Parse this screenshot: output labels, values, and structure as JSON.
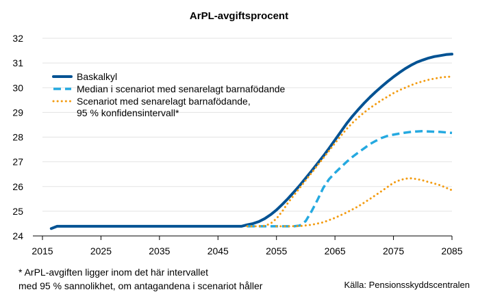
{
  "chart_data": {
    "type": "line",
    "title": "ArPL-avgiftsprocent",
    "xlabel": "",
    "ylabel": "",
    "xlim": [
      2015,
      2085
    ],
    "ylim": [
      24,
      32
    ],
    "x_ticks": [
      "2015",
      "2025",
      "2035",
      "2045",
      "2055",
      "2065",
      "2075",
      "2085"
    ],
    "y_ticks": [
      "24",
      "25",
      "26",
      "27",
      "28",
      "29",
      "30",
      "31",
      "32"
    ],
    "grid": "horizontal",
    "legend_position": "top-left",
    "series": [
      {
        "name": "Baskalkyl",
        "style": "solid",
        "color": "#005293",
        "points": [
          [
            2016.5,
            24.3
          ],
          [
            2017.5,
            24.39
          ],
          [
            2020,
            24.39
          ],
          [
            2030,
            24.39
          ],
          [
            2040,
            24.39
          ],
          [
            2045,
            24.39
          ],
          [
            2049,
            24.39
          ],
          [
            2050,
            24.45
          ],
          [
            2051,
            24.5
          ],
          [
            2052,
            24.58
          ],
          [
            2053,
            24.7
          ],
          [
            2054,
            24.86
          ],
          [
            2055,
            25.05
          ],
          [
            2056,
            25.28
          ],
          [
            2057,
            25.52
          ],
          [
            2058,
            25.78
          ],
          [
            2059,
            26.05
          ],
          [
            2060,
            26.34
          ],
          [
            2061,
            26.63
          ],
          [
            2062,
            26.93
          ],
          [
            2063,
            27.23
          ],
          [
            2064,
            27.55
          ],
          [
            2065,
            27.88
          ],
          [
            2066,
            28.22
          ],
          [
            2067,
            28.55
          ],
          [
            2068,
            28.85
          ],
          [
            2069,
            29.12
          ],
          [
            2070,
            29.38
          ],
          [
            2071,
            29.62
          ],
          [
            2072,
            29.84
          ],
          [
            2073,
            30.05
          ],
          [
            2074,
            30.25
          ],
          [
            2075,
            30.44
          ],
          [
            2076,
            30.61
          ],
          [
            2077,
            30.77
          ],
          [
            2078,
            30.91
          ],
          [
            2079,
            31.03
          ],
          [
            2080,
            31.12
          ],
          [
            2081,
            31.2
          ],
          [
            2082,
            31.26
          ],
          [
            2083,
            31.3
          ],
          [
            2084,
            31.34
          ],
          [
            2085,
            31.36
          ]
        ]
      },
      {
        "name": "Median i scenariot med senarelagt barnafödande",
        "style": "dashed",
        "color": "#25a9e0",
        "points": [
          [
            2050,
            24.39
          ],
          [
            2052,
            24.39
          ],
          [
            2054,
            24.39
          ],
          [
            2056,
            24.39
          ],
          [
            2058,
            24.39
          ],
          [
            2059,
            24.42
          ],
          [
            2060,
            24.6
          ],
          [
            2061,
            25.0
          ],
          [
            2062,
            25.45
          ],
          [
            2063,
            25.95
          ],
          [
            2064,
            26.3
          ],
          [
            2065,
            26.55
          ],
          [
            2066,
            26.78
          ],
          [
            2067,
            27.0
          ],
          [
            2068,
            27.2
          ],
          [
            2069,
            27.38
          ],
          [
            2070,
            27.55
          ],
          [
            2071,
            27.72
          ],
          [
            2072,
            27.85
          ],
          [
            2073,
            27.97
          ],
          [
            2074,
            28.05
          ],
          [
            2075,
            28.1
          ],
          [
            2076,
            28.14
          ],
          [
            2077,
            28.18
          ],
          [
            2078,
            28.21
          ],
          [
            2079,
            28.23
          ],
          [
            2080,
            28.24
          ],
          [
            2081,
            28.23
          ],
          [
            2082,
            28.22
          ],
          [
            2083,
            28.21
          ],
          [
            2084,
            28.19
          ],
          [
            2085,
            28.17
          ]
        ]
      },
      {
        "name": "Scenariot med senarelagt barnafödande, 95 % konfidensintervall*",
        "name_lines": [
          "Scenariot med senarelagt barnafödande,",
          "95 % konfidensintervall*"
        ],
        "style": "dotted",
        "color": "#f39c12",
        "bound": "upper",
        "points": [
          [
            2050,
            24.39
          ],
          [
            2052,
            24.39
          ],
          [
            2053,
            24.41
          ],
          [
            2054,
            24.5
          ],
          [
            2055,
            24.7
          ],
          [
            2056,
            25.0
          ],
          [
            2057,
            25.35
          ],
          [
            2058,
            25.65
          ],
          [
            2059,
            25.95
          ],
          [
            2060,
            26.25
          ],
          [
            2061,
            26.55
          ],
          [
            2062,
            26.85
          ],
          [
            2063,
            27.15
          ],
          [
            2064,
            27.45
          ],
          [
            2065,
            27.75
          ],
          [
            2066,
            28.05
          ],
          [
            2067,
            28.33
          ],
          [
            2068,
            28.58
          ],
          [
            2069,
            28.8
          ],
          [
            2070,
            29.0
          ],
          [
            2071,
            29.18
          ],
          [
            2072,
            29.34
          ],
          [
            2073,
            29.5
          ],
          [
            2074,
            29.64
          ],
          [
            2075,
            29.78
          ],
          [
            2076,
            29.9
          ],
          [
            2077,
            30.0
          ],
          [
            2078,
            30.1
          ],
          [
            2079,
            30.19
          ],
          [
            2080,
            30.26
          ],
          [
            2081,
            30.32
          ],
          [
            2082,
            30.37
          ],
          [
            2083,
            30.41
          ],
          [
            2084,
            30.44
          ],
          [
            2085,
            30.45
          ]
        ]
      },
      {
        "name": "Scenariot med senarelagt barnafödande, 95 % konfidensintervall*",
        "style": "dotted",
        "color": "#f39c12",
        "bound": "lower",
        "points": [
          [
            2055,
            24.39
          ],
          [
            2057,
            24.39
          ],
          [
            2059,
            24.4
          ],
          [
            2061,
            24.45
          ],
          [
            2063,
            24.55
          ],
          [
            2065,
            24.73
          ],
          [
            2067,
            24.95
          ],
          [
            2069,
            25.2
          ],
          [
            2071,
            25.5
          ],
          [
            2073,
            25.82
          ],
          [
            2075,
            26.15
          ],
          [
            2076,
            26.25
          ],
          [
            2077,
            26.32
          ],
          [
            2078,
            26.33
          ],
          [
            2079,
            26.3
          ],
          [
            2080,
            26.25
          ],
          [
            2081,
            26.18
          ],
          [
            2082,
            26.12
          ],
          [
            2083,
            26.05
          ],
          [
            2084,
            25.95
          ],
          [
            2085,
            25.85
          ]
        ]
      }
    ]
  },
  "footnote": {
    "line1": "* ArPL-avgiften ligger inom det här intervallet",
    "line2": "med 95 % sannolikhet, om antagandena i scenariot håller"
  },
  "source": "Källa: Pensionsskyddscentralen"
}
